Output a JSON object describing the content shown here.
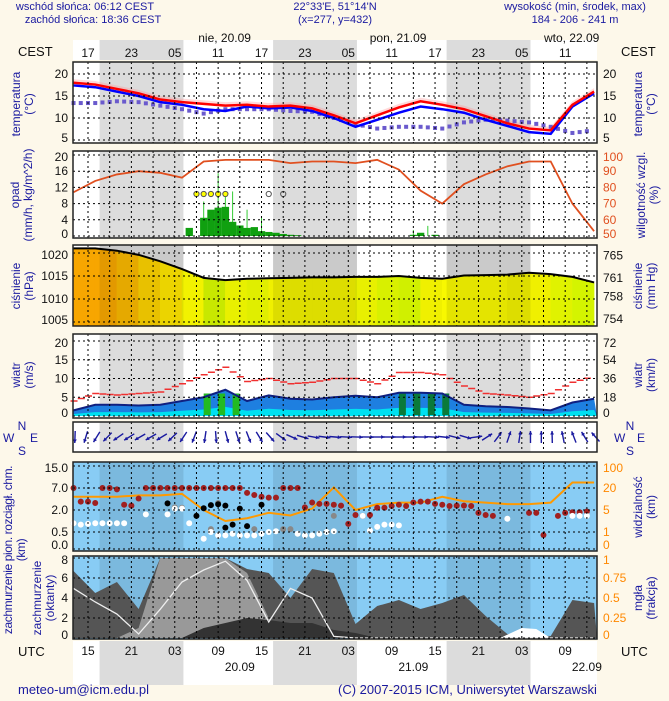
{
  "header": {
    "sunrise": "wschód słońca: 06:12 CEST",
    "sunset": "zachód słońca: 18:36 CEST",
    "coords": "22°33'E, 51°14'N",
    "grid": "(x=277,  y=432)",
    "elevation_label": "wysokość (min, środek, max)",
    "elevation_values": "184 - 206 - 241 m"
  },
  "top_axis": {
    "tz": "CEST",
    "hours": [
      "17",
      "23",
      "05",
      "11",
      "17",
      "23",
      "05",
      "11",
      "17",
      "23",
      "05",
      "11"
    ],
    "dates": [
      "nie, 20.09",
      "pon, 21.09",
      "wto, 22.09"
    ]
  },
  "bottom_axis": {
    "tz": "UTC",
    "hours": [
      "15",
      "21",
      "03",
      "09",
      "15",
      "21",
      "03",
      "09",
      "15",
      "21",
      "03",
      "09"
    ],
    "dates": [
      "20.09",
      "21.09",
      "22.09"
    ]
  },
  "labels": {
    "temp_left": [
      "temperatura",
      "(°C)"
    ],
    "temp_right": [
      "temperatura",
      "(°C)"
    ],
    "precip_left": [
      "opad",
      "(mm/h, kg/m^2/h)"
    ],
    "precip_right": [
      "wilgotność wzgl.",
      "(%)"
    ],
    "pressure_left": [
      "ciśnienie",
      "(hPa)"
    ],
    "pressure_right": [
      "ciśnienie",
      "(mm Hg)"
    ],
    "wind_left": [
      "wiatr",
      "(m/s)"
    ],
    "wind_right": [
      "wiatr",
      "(km/h)"
    ],
    "compass": {
      "n": "N",
      "e": "E",
      "s": "S",
      "w": "W"
    },
    "cloud_left": [
      "zachmurzenie pion. rozciągł. chm.",
      "(km)"
    ],
    "cloud_right": [
      "widzialność",
      "(km)"
    ],
    "cover_left": [
      "zachmurzenie",
      "(oktanty)"
    ],
    "cover_right": [
      "mgła",
      "(frakcja)"
    ]
  },
  "footer": {
    "email": "meteo-um@icm.edu.pl",
    "copyright": "(C) 2007-2015 ICM, Uniwersytet Warszawski"
  },
  "chart_data": {
    "type": "line",
    "title": "meteogram",
    "time_unit": "hours since 19.09 15 UTC",
    "t": [
      -2,
      1,
      4,
      7,
      10,
      13,
      16,
      19,
      22,
      25,
      28,
      31,
      34,
      37,
      40,
      43,
      46,
      49,
      52,
      55,
      58,
      61,
      64,
      67,
      70
    ],
    "temperature": {
      "ticks_left": [
        "5",
        "10",
        "15",
        "20"
      ],
      "ticks_right": [
        "5",
        "10",
        "15",
        "20"
      ],
      "ylim": [
        5,
        20
      ],
      "series": [
        {
          "name": "temperature",
          "color": "#ff0000",
          "values": [
            18,
            17.6,
            16.6,
            15.6,
            14.2,
            13.6,
            13.2,
            12.8,
            13,
            12.6,
            12.8,
            12.2,
            10.6,
            8.8,
            10.6,
            12.4,
            13.8,
            13,
            12,
            10.4,
            8.8,
            7.6,
            7.2,
            13,
            16
          ]
        },
        {
          "name": "perceived",
          "color": "#0000ff",
          "values": [
            17.4,
            17,
            16,
            15,
            13.6,
            13,
            12,
            11.6,
            12.6,
            12.2,
            12.4,
            11.6,
            10,
            8,
            9.6,
            11.2,
            12.6,
            12,
            11.2,
            9.6,
            8.2,
            6.8,
            6.4,
            12.6,
            15.6
          ]
        },
        {
          "name": "dew point",
          "color": "#6a5acd",
          "values": [
            13.4,
            13.4,
            13.8,
            13.6,
            12.8,
            12,
            11,
            12,
            12,
            12,
            11.6,
            11.4,
            10,
            8.6,
            7.6,
            8,
            8,
            7.6,
            9,
            9.6,
            9.4,
            9,
            8,
            6.6,
            7.2
          ]
        }
      ]
    },
    "precipitation": {
      "ticks_left": [
        "0",
        "4",
        "8",
        "12",
        "16",
        "20"
      ],
      "ylim": [
        0,
        20
      ],
      "ticks_right": [
        "50",
        "60",
        "70",
        "80",
        "90",
        "100"
      ],
      "ylim_right": [
        50,
        100
      ],
      "humidity": {
        "color": "#e05020",
        "values": [
          77,
          84,
          88,
          90,
          89,
          86,
          96,
          97,
          97,
          97,
          95,
          96,
          96,
          95,
          97,
          91,
          78,
          70,
          82,
          88,
          93,
          96,
          96,
          70,
          53
        ]
      },
      "hourly": [
        [
          14,
          2
        ],
        [
          16,
          4.5
        ],
        [
          17,
          6.5
        ],
        [
          18,
          7
        ],
        [
          19,
          7.2
        ],
        [
          20,
          3.5
        ],
        [
          21,
          2.6
        ],
        [
          22,
          2
        ],
        [
          23,
          2.2
        ],
        [
          24,
          1.2
        ],
        [
          25,
          1
        ],
        [
          26,
          0.8
        ],
        [
          27,
          0.5
        ],
        [
          28,
          0.3
        ],
        [
          29,
          0.2
        ],
        [
          45,
          0.3
        ],
        [
          46,
          0.8
        ],
        [
          48,
          0.3
        ]
      ],
      "max": [
        [
          16,
          8.5
        ],
        [
          18,
          15.5
        ],
        [
          19,
          10
        ],
        [
          20,
          11
        ],
        [
          22,
          6.5
        ],
        [
          24,
          4.5
        ],
        [
          45,
          1.5
        ],
        [
          47,
          2.5
        ]
      ],
      "markers": [
        [
          15,
          true
        ],
        [
          16,
          true
        ],
        [
          17,
          true
        ],
        [
          18,
          true
        ],
        [
          19,
          true
        ],
        [
          25,
          false
        ],
        [
          27,
          false
        ]
      ]
    },
    "pressure": {
      "ticks_left": [
        "1005",
        "1010",
        "1015",
        "1020"
      ],
      "ylim": [
        1005,
        1020
      ],
      "ticks_right": [
        "754",
        "758",
        "761",
        "765"
      ],
      "values": [
        1021,
        1021,
        1020.5,
        1019.6,
        1018.2,
        1016.5,
        1014.6,
        1014.1,
        1014.4,
        1014.5,
        1014.6,
        1014.7,
        1014.7,
        1014.8,
        1014.8,
        1015,
        1014.6,
        1014.4,
        1015.1,
        1015.2,
        1015.3,
        1015.7,
        1015.4,
        1014.8,
        1013.6
      ],
      "fill_colors": [
        "#f7a600",
        "#f7a600",
        "#f9b800",
        "#fcd200",
        "#ffe600",
        "#f2f200",
        "#c8e800",
        "#e8f000",
        "#e0ee00",
        "#f0f000",
        "#f0f000",
        "#f0f000",
        "#f0f000",
        "#e8f000",
        "#d8f000",
        "#d0f000",
        "#f0f000",
        "#f8f800",
        "#f8f800",
        "#f8f800",
        "#f0f000",
        "#f0f000",
        "#e0f200",
        "#d4f400"
      ]
    },
    "wind": {
      "ticks_left": [
        "0",
        "5",
        "10",
        "15",
        "20"
      ],
      "ylim": [
        0,
        20
      ],
      "ticks_right": [
        "0",
        "18",
        "36",
        "54",
        "72"
      ],
      "speed": [
        1.5,
        3,
        3,
        2.8,
        3,
        4,
        5,
        7,
        4,
        5.5,
        4.6,
        4.4,
        5,
        5.4,
        5,
        6.2,
        6.2,
        6,
        3,
        2.6,
        2.4,
        2,
        1.5,
        3.6,
        4.6
      ],
      "gusts": [
        4,
        6,
        5.6,
        6,
        6.4,
        8.6,
        11,
        13,
        9.2,
        10,
        8.6,
        9,
        10,
        10,
        8.6,
        11.6,
        11.6,
        11,
        8,
        6,
        5.6,
        5,
        6,
        9,
        10.6
      ],
      "direction_arrow_deg": [
        180,
        210,
        235,
        240,
        240,
        215,
        190,
        165,
        160,
        140,
        115,
        100,
        95,
        92,
        90,
        90,
        90,
        95,
        110,
        60,
        20,
        0,
        0,
        340,
        320
      ]
    },
    "cloud_base": {
      "ticks_left": [
        "0.0",
        "0.5",
        "2.0",
        "7.0",
        "15.0"
      ],
      "ticks_right": [
        "0",
        "1",
        "5",
        "20",
        "100"
      ],
      "visibility_km": [
        14,
        14,
        14,
        15,
        15,
        16,
        5,
        3,
        3.5,
        4.5,
        4,
        6,
        22,
        5,
        9,
        10,
        10,
        14,
        11,
        10,
        9,
        9,
        10,
        40,
        40
      ],
      "red": [
        [
          -2,
          7
        ],
        [
          -1,
          3.9
        ],
        [
          0,
          3.9
        ],
        [
          1,
          3.6
        ],
        [
          2,
          7
        ],
        [
          3,
          7
        ],
        [
          4,
          6.7
        ],
        [
          5,
          3.2
        ],
        [
          6,
          3
        ],
        [
          7,
          4.6
        ],
        [
          8,
          7
        ],
        [
          9,
          7
        ],
        [
          10,
          7
        ],
        [
          11,
          7
        ],
        [
          12,
          7
        ],
        [
          13,
          7
        ],
        [
          14,
          7
        ],
        [
          15,
          7
        ],
        [
          16,
          7
        ],
        [
          17,
          7
        ],
        [
          18,
          7
        ],
        [
          19,
          7
        ],
        [
          20,
          7
        ],
        [
          21,
          7
        ],
        [
          22,
          5.9
        ],
        [
          23,
          5.4
        ],
        [
          24,
          5
        ],
        [
          25,
          4.8
        ],
        [
          26,
          4.8
        ],
        [
          27,
          7
        ],
        [
          28,
          7
        ],
        [
          29,
          7
        ],
        [
          30,
          2.6
        ],
        [
          31,
          3.7
        ],
        [
          32,
          3.4
        ],
        [
          33,
          3.4
        ],
        [
          34,
          3.2
        ],
        [
          35,
          3
        ],
        [
          36,
          1.05
        ],
        [
          37,
          1.66
        ],
        [
          38,
          1.6
        ],
        [
          39,
          1.66
        ],
        [
          40,
          2.5
        ],
        [
          41,
          2.5
        ],
        [
          42,
          2.9
        ],
        [
          43,
          3.2
        ],
        [
          44,
          2.9
        ],
        [
          45,
          3.7
        ],
        [
          46,
          3.9
        ],
        [
          47,
          3.9
        ],
        [
          48,
          3.4
        ],
        [
          49,
          3.2
        ],
        [
          50,
          2.9
        ],
        [
          51,
          3
        ],
        [
          52,
          3
        ],
        [
          53,
          2.9
        ],
        [
          54,
          1.8
        ],
        [
          55,
          1.66
        ],
        [
          56,
          1.6
        ],
        [
          61,
          1.8
        ],
        [
          62,
          1.8
        ],
        [
          63,
          0.41
        ],
        [
          65,
          1.6
        ],
        [
          66,
          1.8
        ],
        [
          67,
          1.85
        ],
        [
          68,
          1.85
        ],
        [
          69,
          1.9
        ]
      ],
      "white": [
        [
          -2,
          1.1
        ],
        [
          -1,
          1.0
        ],
        [
          0,
          1.05
        ],
        [
          1,
          1.1
        ],
        [
          2,
          1.1
        ],
        [
          3,
          1.1
        ],
        [
          4,
          1.1
        ],
        [
          5,
          1.1
        ],
        [
          8,
          1.7
        ],
        [
          11,
          1.7
        ],
        [
          12,
          2.3
        ],
        [
          13,
          2.3
        ],
        [
          14,
          1.1
        ],
        [
          16,
          0.3
        ],
        [
          17,
          0.5
        ],
        [
          18,
          0.4
        ],
        [
          19,
          0.4
        ],
        [
          20,
          0.45
        ],
        [
          21,
          0.4
        ],
        [
          22,
          0.4
        ],
        [
          23,
          0.4
        ],
        [
          24,
          0.45
        ],
        [
          25,
          0.5
        ],
        [
          26,
          0.55
        ],
        [
          29,
          0.45
        ],
        [
          30,
          0.4
        ],
        [
          31,
          0.4
        ],
        [
          32,
          0.45
        ],
        [
          33,
          0.5
        ],
        [
          34,
          0.55
        ],
        [
          38,
          1.6
        ],
        [
          39,
          0.6
        ],
        [
          40,
          0.85
        ],
        [
          41,
          1
        ],
        [
          42,
          1
        ],
        [
          43,
          0.95
        ],
        [
          58,
          1.4
        ],
        [
          67,
          1.6
        ],
        [
          68,
          1.6
        ],
        [
          69,
          1.6
        ]
      ],
      "black": [
        [
          11,
          3.5
        ],
        [
          15,
          1.6
        ],
        [
          16,
          2.4
        ],
        [
          17,
          3.1
        ],
        [
          18,
          3.3
        ],
        [
          19,
          3.0
        ],
        [
          21,
          2.3
        ],
        [
          24,
          3.2
        ],
        [
          19,
          0.8
        ],
        [
          20,
          1.0
        ],
        [
          22,
          0.9
        ]
      ],
      "gray": [
        [
          -2,
          1.1
        ],
        [
          12,
          2.6
        ],
        [
          13,
          2.5
        ],
        [
          18,
          3.6
        ],
        [
          17,
          0.7
        ],
        [
          23,
          0.7
        ],
        [
          27,
          0.7
        ],
        [
          28,
          0.7
        ],
        [
          34,
          1.6
        ]
      ]
    },
    "cloud_cover": {
      "ticks_left": [
        "0",
        "2",
        "4",
        "6",
        "8"
      ],
      "ylim": [
        0,
        8
      ],
      "ticks_right": [
        "0",
        "0.25",
        "0.5",
        "0.75",
        "1"
      ],
      "ylim_right": [
        0,
        1
      ],
      "total": [
        6.7,
        4.5,
        5.6,
        2.9,
        8,
        8,
        8,
        8,
        6.9,
        6.5,
        4,
        6.9,
        6.5,
        1.4,
        3.2,
        3.8,
        2.9,
        3.5,
        4.3,
        2.2,
        0.4,
        0.3,
        0.2,
        3.8,
        3.5
      ],
      "middle": [
        0,
        0,
        0,
        1,
        8,
        8,
        8,
        8,
        6.5,
        2,
        0,
        0,
        0,
        0,
        0,
        0,
        0,
        0,
        0,
        0,
        0,
        0,
        0,
        0,
        0
      ],
      "low": [
        0,
        0,
        0,
        0,
        0,
        0,
        1,
        1.5,
        2,
        1.8,
        1.5,
        1.5,
        0.8,
        0.5,
        0,
        0,
        0,
        0,
        0,
        0,
        0,
        0,
        0,
        0,
        0
      ],
      "fog": [
        0.62,
        0.45,
        0.3,
        0.05,
        0.36,
        0.7,
        0.85,
        0.96,
        0.72,
        0.2,
        0.62,
        0.5,
        0.02,
        0,
        0,
        0,
        0,
        0,
        0,
        0,
        0,
        0,
        0,
        0,
        0
      ]
    }
  }
}
